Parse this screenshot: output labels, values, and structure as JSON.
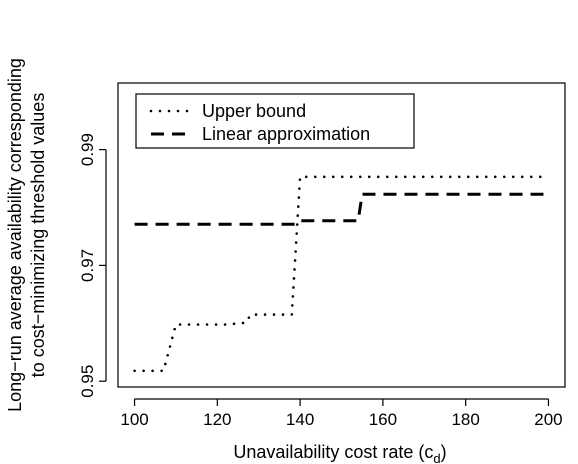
{
  "chart_data": {
    "type": "line",
    "xlabel": "Unavailability cost rate (c",
    "xlabel_subscript": "d",
    "xlabel_suffix": ")",
    "ylabel_line1": "Long−run average availability corresponding",
    "ylabel_line2": "to cost−minimizing threshold values",
    "xlim": [
      96,
      204
    ],
    "ylim": [
      0.949,
      1.0015
    ],
    "x_ticks": [
      100,
      120,
      140,
      160,
      180,
      200
    ],
    "y_ticks": [
      0.95,
      0.97,
      0.99
    ],
    "y_tick_labels": [
      "0.95",
      "0.97",
      "0.99"
    ],
    "grid": false,
    "legend_position": "top-left",
    "series": [
      {
        "name": "Upper bound",
        "style": "dotted",
        "color": "#000000",
        "points": [
          [
            100,
            0.9518
          ],
          [
            107,
            0.9518
          ],
          [
            110,
            0.9598
          ],
          [
            121,
            0.9598
          ],
          [
            122,
            0.9598
          ],
          [
            127,
            0.9601
          ],
          [
            128,
            0.9615
          ],
          [
            138,
            0.9615
          ],
          [
            140,
            0.9853
          ],
          [
            200,
            0.9853
          ]
        ]
      },
      {
        "name": "Linear approximation",
        "style": "dashed",
        "color": "#000000",
        "points": [
          [
            100,
            0.9771
          ],
          [
            139,
            0.9771
          ],
          [
            140,
            0.9777
          ],
          [
            154,
            0.9777
          ],
          [
            155,
            0.9823
          ],
          [
            200,
            0.9823
          ]
        ]
      }
    ]
  }
}
